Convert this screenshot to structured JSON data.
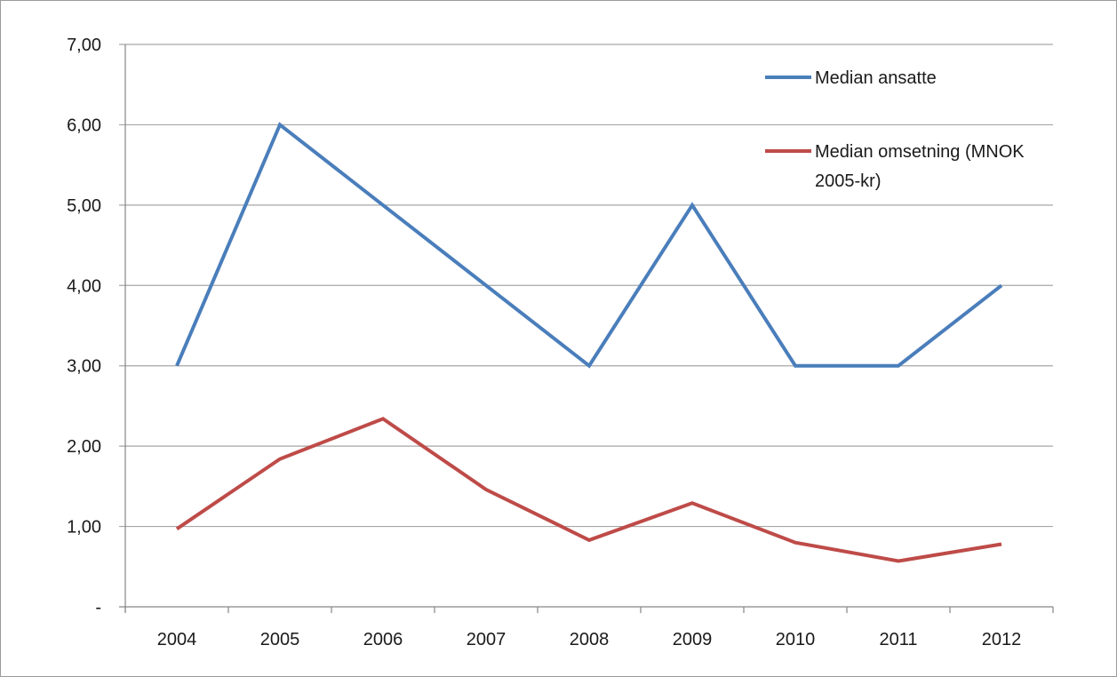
{
  "chart_data": {
    "type": "line",
    "categories": [
      "2004",
      "2005",
      "2006",
      "2007",
      "2008",
      "2009",
      "2010",
      "2011",
      "2012"
    ],
    "series": [
      {
        "name": "Median ansatte",
        "color": "#4a7ebb",
        "values": [
          3.0,
          6.0,
          5.0,
          4.0,
          3.0,
          5.0,
          3.0,
          3.0,
          4.0
        ]
      },
      {
        "name_lines": [
          "Median omsetning (MNOK",
          "2005-kr)"
        ],
        "color": "#be4b48",
        "values": [
          0.97,
          1.84,
          2.34,
          1.46,
          0.83,
          1.29,
          0.8,
          0.57,
          0.78
        ]
      }
    ],
    "yticks": [
      {
        "value": 0,
        "label": "-"
      },
      {
        "value": 1,
        "label": "1,00"
      },
      {
        "value": 2,
        "label": "2,00"
      },
      {
        "value": 3,
        "label": "3,00"
      },
      {
        "value": 4,
        "label": "4,00"
      },
      {
        "value": 5,
        "label": "5,00"
      },
      {
        "value": 6,
        "label": "6,00"
      },
      {
        "value": 7,
        "label": "7,00"
      }
    ],
    "ylim": [
      0,
      7
    ],
    "grid": true,
    "legend_position": "top-right",
    "gridline_color": "#a6a6a6",
    "axis_color": "#868686"
  }
}
